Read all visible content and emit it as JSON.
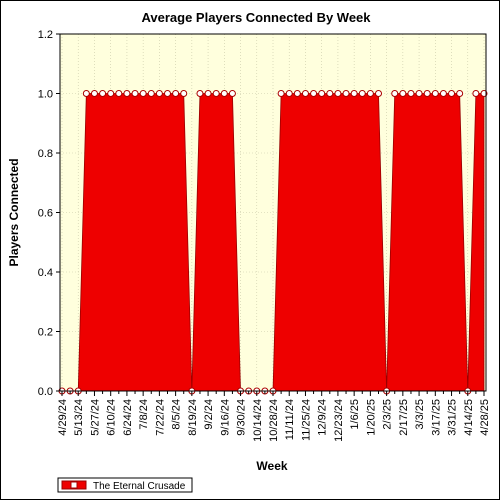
{
  "chart_data": {
    "type": "area",
    "title": "Average Players Connected By Week",
    "xlabel": "Week",
    "ylabel": "Players Connected",
    "ylim": [
      0,
      1.2
    ],
    "yticks": [
      "0.0",
      "0.2",
      "0.4",
      "0.6",
      "0.8",
      "1.0",
      "1.2"
    ],
    "grid": true,
    "legend_position": "bottom-left",
    "series_color": "#ee0000",
    "plot_background": "#ffffdd",
    "x_tick_labels": [
      "4/29/24",
      "5/13/24",
      "5/27/24",
      "6/10/24",
      "6/24/24",
      "7/8/24",
      "7/22/24",
      "8/5/24",
      "8/19/24",
      "9/2/24",
      "9/16/24",
      "9/30/24",
      "10/14/24",
      "10/28/24",
      "11/11/24",
      "11/25/24",
      "12/9/24",
      "12/23/24",
      "1/6/25",
      "1/20/25",
      "2/3/25",
      "2/17/25",
      "3/3/25",
      "3/17/25",
      "3/31/25",
      "4/14/25",
      "4/28/25"
    ],
    "x": [
      "4/29/24",
      "5/6/24",
      "5/13/24",
      "5/20/24",
      "5/27/24",
      "6/3/24",
      "6/10/24",
      "6/17/24",
      "6/24/24",
      "7/1/24",
      "7/8/24",
      "7/15/24",
      "7/22/24",
      "7/29/24",
      "8/5/24",
      "8/12/24",
      "8/19/24",
      "8/26/24",
      "9/2/24",
      "9/9/24",
      "9/16/24",
      "9/23/24",
      "9/30/24",
      "10/7/24",
      "10/14/24",
      "10/21/24",
      "10/28/24",
      "11/4/24",
      "11/11/24",
      "11/18/24",
      "11/25/24",
      "12/2/24",
      "12/9/24",
      "12/16/24",
      "12/23/24",
      "12/30/24",
      "1/6/25",
      "1/13/25",
      "1/20/25",
      "1/27/25",
      "2/3/25",
      "2/10/25",
      "2/17/25",
      "2/24/25",
      "3/3/25",
      "3/10/25",
      "3/17/25",
      "3/24/25",
      "3/31/25",
      "4/7/25",
      "4/14/25",
      "4/21/25",
      "4/28/25"
    ],
    "series": [
      {
        "name": "The Eternal Crusade",
        "values": [
          0,
          0,
          0,
          1,
          1,
          1,
          1,
          1,
          1,
          1,
          1,
          1,
          1,
          1,
          1,
          1,
          0,
          1,
          1,
          1,
          1,
          1,
          0,
          0,
          0,
          0,
          0,
          1,
          1,
          1,
          1,
          1,
          1,
          1,
          1,
          1,
          1,
          1,
          1,
          1,
          0,
          1,
          1,
          1,
          1,
          1,
          1,
          1,
          1,
          1,
          0,
          1,
          1
        ]
      }
    ]
  }
}
